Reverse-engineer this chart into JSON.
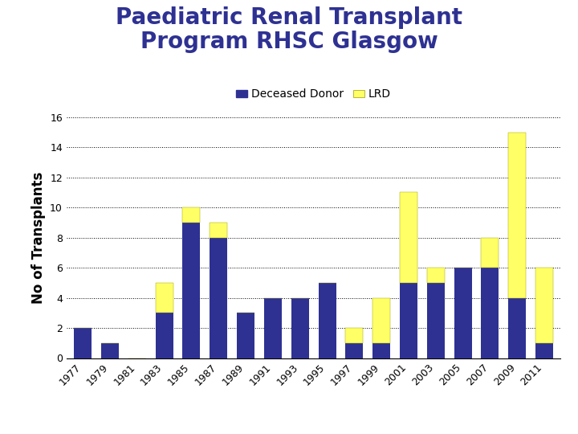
{
  "years": [
    "1977",
    "1979",
    "1981",
    "1983",
    "1985",
    "1987",
    "1989",
    "1991",
    "1993",
    "1995",
    "1997",
    "1999",
    "2001",
    "2003",
    "2005",
    "2007",
    "2009",
    "2011"
  ],
  "deceased_donor": [
    2,
    1,
    0,
    3,
    9,
    8,
    3,
    4,
    4,
    5,
    1,
    1,
    5,
    5,
    6,
    6,
    4,
    1
  ],
  "lrd": [
    0,
    0,
    0,
    2,
    1,
    1,
    0,
    0,
    0,
    0,
    1,
    3,
    6,
    1,
    0,
    2,
    11,
    5
  ],
  "title_line1": "Paediatric Renal Transplant",
  "title_line2": "Program RHSC Glasgow",
  "ylabel": "No of Transplants",
  "bar_color_dd": "#2E3192",
  "bar_color_lrd": "#FFFF66",
  "legend_dd": "Deceased Donor",
  "legend_lrd": "LRD",
  "ylim": [
    0,
    16
  ],
  "yticks": [
    0,
    2,
    4,
    6,
    8,
    10,
    12,
    14,
    16
  ],
  "title_color": "#2E3192",
  "title_fontsize": 20,
  "ylabel_fontsize": 12,
  "tick_fontsize": 9,
  "legend_fontsize": 10,
  "background_color": "#FFFFFF",
  "footer_color": "#3B3FA0"
}
